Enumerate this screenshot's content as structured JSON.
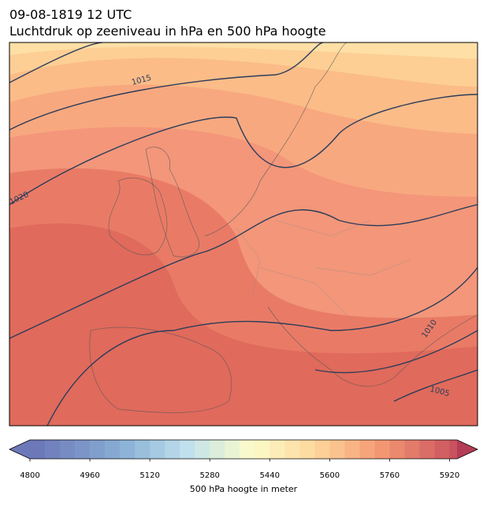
{
  "title": [
    "09-08-1819 12 UTC",
    "Luchtdruk op zeeniveau in hPa en 500 hPa hoogte"
  ],
  "isobar_labels": [
    1015,
    1020,
    1010,
    1005
  ],
  "colorbar": {
    "label": "500 hPa hoogte in meter",
    "lim": [
      4800,
      5940
    ],
    "step": 40,
    "ticks": [
      4800,
      4960,
      5120,
      5280,
      5440,
      5600,
      5760,
      5920
    ]
  }
}
